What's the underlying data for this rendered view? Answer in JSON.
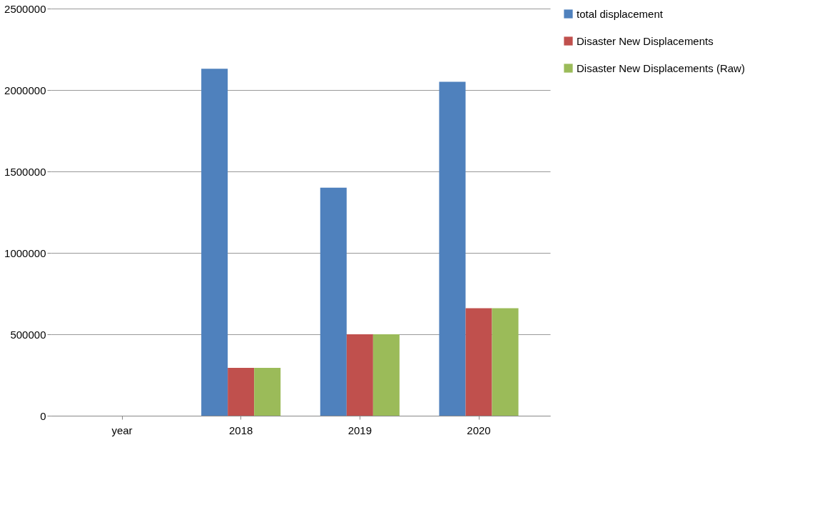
{
  "chart_data": {
    "type": "bar",
    "categories": [
      "year",
      "2018",
      "2019",
      "2020"
    ],
    "series": [
      {
        "name": "total displacement",
        "color": "#4f81bd",
        "values": [
          null,
          2130000,
          1400000,
          2050000
        ]
      },
      {
        "name": "Disaster New Displacements",
        "color": "#c0504d",
        "values": [
          null,
          294000,
          500000,
          660000
        ]
      },
      {
        "name": "Disaster New Displacements (Raw)",
        "color": "#9bbb59",
        "values": [
          null,
          294000,
          500000,
          660000
        ]
      }
    ],
    "ylim": [
      0,
      2500000
    ],
    "yticks": [
      0,
      500000,
      1000000,
      1500000,
      2000000,
      2500000
    ],
    "grid": "y",
    "legend": "right"
  }
}
